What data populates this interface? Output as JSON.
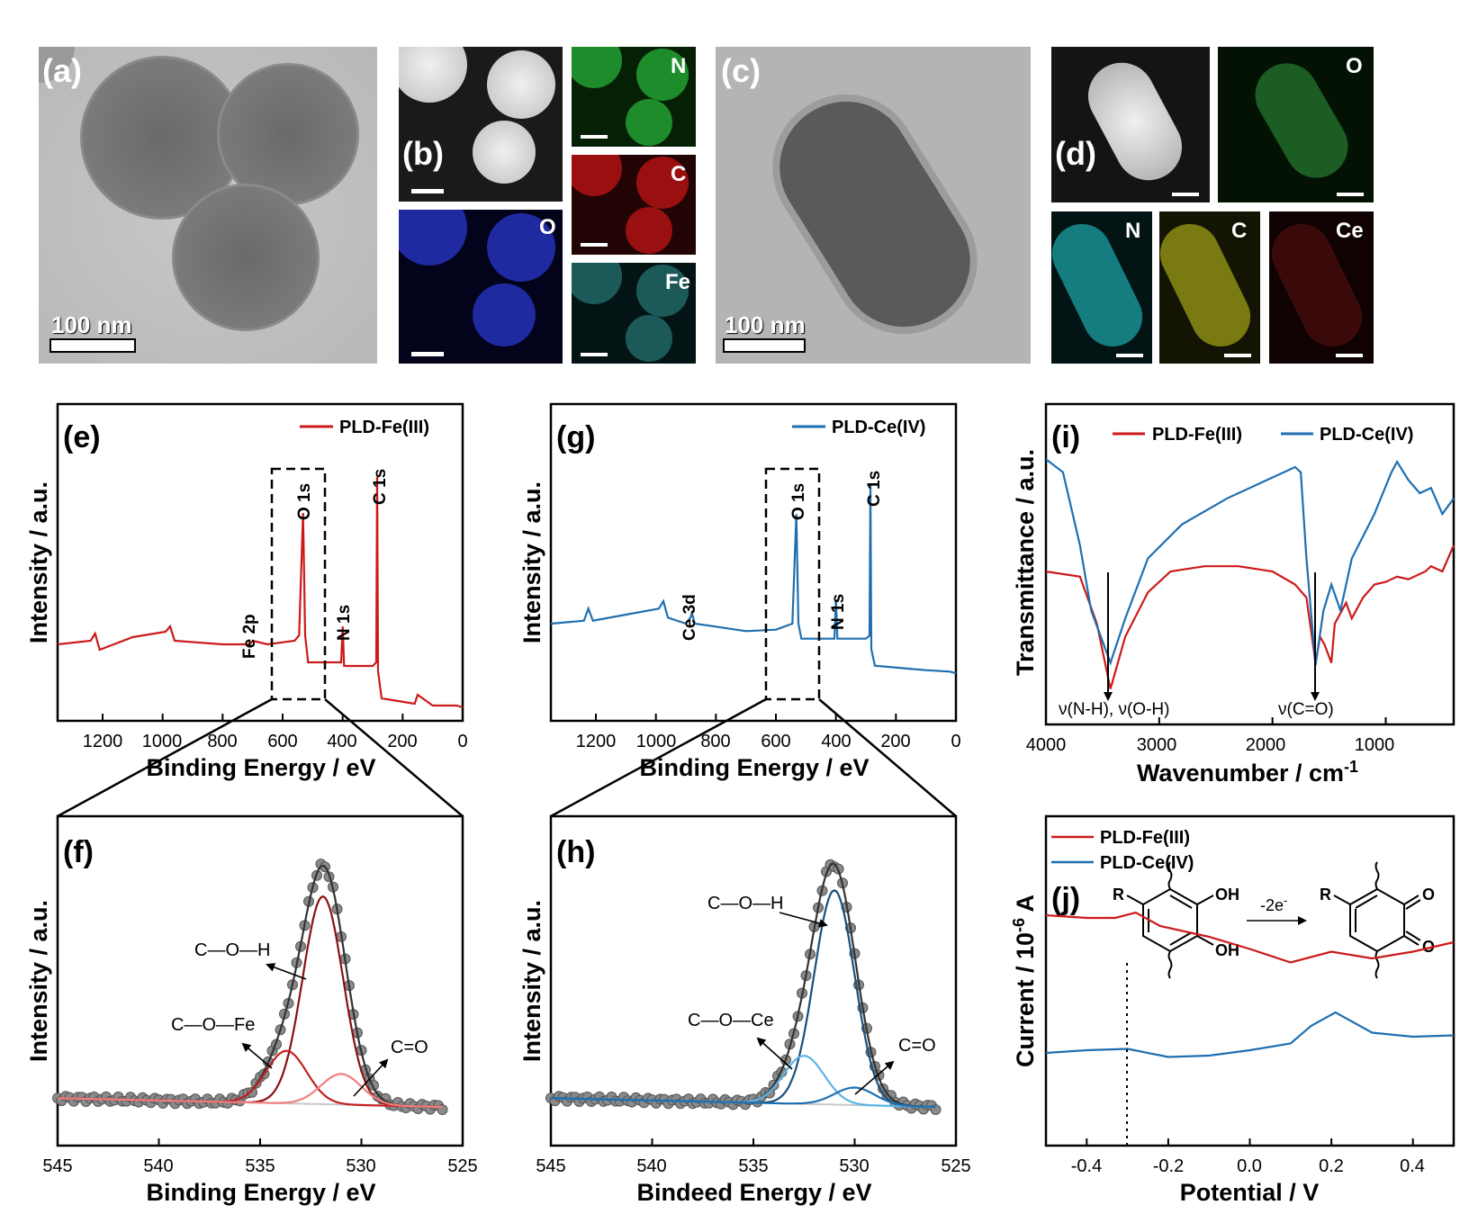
{
  "panels": {
    "a": {
      "label": "(a)",
      "scale_bar": "100 nm"
    },
    "b": {
      "label": "(b)",
      "maps": [
        "N",
        "C",
        "O",
        "Fe"
      ]
    },
    "c": {
      "label": "(c)",
      "scale_bar": "100 nm"
    },
    "d": {
      "label": "(d)",
      "maps": [
        "O",
        "N",
        "C",
        "Ce"
      ]
    },
    "e": {
      "label": "(e)",
      "legend": "PLD-Fe(III)",
      "color": "#cc1a1a",
      "peaks": [
        "Fe 2p",
        "O 1s",
        "N 1s",
        "C 1s"
      ],
      "xlabel": "Binding Energy / eV",
      "ylabel": "Intensity / a.u.",
      "xticks": [
        "1200",
        "1000",
        "800",
        "600",
        "400",
        "200",
        "0"
      ]
    },
    "f": {
      "label": "(f)",
      "components": [
        "C—O—H",
        "C—O—Fe",
        "C=O"
      ],
      "xlabel": "Binding Energy / eV",
      "ylabel": "Intensity / a.u.",
      "xticks": [
        "545",
        "540",
        "535",
        "530",
        "525"
      ]
    },
    "g": {
      "label": "(g)",
      "legend": "PLD-Ce(IV)",
      "color": "#1f6fb0",
      "peaks": [
        "Ce 3d",
        "O 1s",
        "N 1s",
        "C 1s"
      ],
      "xlabel": "Binding Energy / eV",
      "ylabel": "Intensity / a.u.",
      "xticks": [
        "1200",
        "1000",
        "800",
        "600",
        "400",
        "200",
        "0"
      ]
    },
    "h": {
      "label": "(h)",
      "components": [
        "C—O—H",
        "C—O—Ce",
        "C=O"
      ],
      "xlabel": "Bindeed Energy / eV",
      "ylabel": "Intensity / a.u.",
      "xticks": [
        "545",
        "540",
        "535",
        "530",
        "525"
      ]
    },
    "i": {
      "label": "(i)",
      "legend": [
        "PLD-Fe(III)",
        "PLD-Ce(IV)"
      ],
      "annotations": [
        "ν(N-H), ν(O-H)",
        "ν(C=O)"
      ],
      "xlabel": "Wavenumber / cm",
      "xlabel_sup": "-1",
      "ylabel": "Transmittance / a.u.",
      "xticks": [
        "4000",
        "3000",
        "2000",
        "1000"
      ]
    },
    "j": {
      "label": "(j)",
      "legend": [
        "PLD-Fe(III)",
        "PLD-Ce(IV)"
      ],
      "scheme": {
        "r1": "R",
        "r2": "R",
        "oh1": "OH",
        "oh2": "OH",
        "o1": "O",
        "o2": "O",
        "arrow": "-2e",
        "arrow_sup": "-"
      },
      "xlabel": "Potential / V",
      "ylabel": "Current / 10",
      "ylabel_sup": "-6",
      "ylabel_unit": " A",
      "xticks": [
        "-0.4",
        "-0.2",
        "0.0",
        "0.2",
        "0.4"
      ]
    }
  },
  "chart_data": [
    {
      "type": "line",
      "panel": "e",
      "title": "",
      "xlabel": "Binding Energy / eV",
      "ylabel": "Intensity / a.u.",
      "xlim": [
        1350,
        0
      ],
      "series": [
        {
          "name": "PLD-Fe(III)",
          "x": [
            1350,
            1240,
            1225,
            1210,
            1100,
            990,
            975,
            960,
            800,
            710,
            700,
            650,
            560,
            545,
            532,
            525,
            515,
            405,
            400,
            395,
            300,
            288,
            285,
            282,
            270,
            160,
            150,
            100,
            60,
            20,
            0
          ],
          "y": [
            0.0,
            0.02,
            0.06,
            -0.03,
            0.04,
            0.07,
            0.1,
            0.02,
            0.0,
            0.0,
            0.02,
            0.0,
            0.02,
            0.05,
            0.73,
            0.05,
            -0.1,
            -0.1,
            0.1,
            -0.12,
            -0.12,
            -0.1,
            0.93,
            -0.15,
            -0.3,
            -0.33,
            -0.28,
            -0.34,
            -0.34,
            -0.34,
            -0.35
          ]
        }
      ]
    },
    {
      "type": "line",
      "panel": "f",
      "title": "",
      "xlabel": "Binding Energy / eV",
      "ylabel": "Intensity / a.u.",
      "xlim": [
        545,
        525
      ],
      "series": [
        {
          "name": "",
          "x": [
            545,
            540,
            536,
            534,
            532.5,
            531.8,
            531,
            530,
            529,
            528,
            526
          ],
          "y": [
            0.02,
            0.03,
            0.07,
            0.3,
            0.85,
            1.0,
            0.85,
            0.35,
            0.12,
            0.03,
            0.0
          ]
        },
        {
          "name": "C—O—H",
          "center": 531.9,
          "height": 0.95
        },
        {
          "name": "C—O—Fe",
          "center": 533.7,
          "height": 0.24
        },
        {
          "name": "C=O",
          "center": 531.0,
          "height": 0.14
        }
      ]
    },
    {
      "type": "line",
      "panel": "g",
      "title": "",
      "xlabel": "Binding Energy / eV",
      "ylabel": "Intensity / a.u.",
      "xlim": [
        1350,
        0
      ],
      "series": [
        {
          "name": "PLD-Ce(IV)",
          "x": [
            1350,
            1240,
            1225,
            1210,
            1100,
            990,
            975,
            960,
            900,
            885,
            880,
            870,
            800,
            700,
            600,
            545,
            532,
            525,
            515,
            405,
            400,
            395,
            300,
            288,
            285,
            282,
            270,
            160,
            100,
            20,
            0
          ],
          "y": [
            0.0,
            0.02,
            0.1,
            0.02,
            0.06,
            0.1,
            0.15,
            0.04,
            0.0,
            0.04,
            0.07,
            0.0,
            -0.02,
            -0.05,
            -0.04,
            0.0,
            0.73,
            0.0,
            -0.1,
            -0.1,
            0.16,
            -0.1,
            -0.1,
            -0.08,
            0.93,
            -0.17,
            -0.28,
            -0.3,
            -0.31,
            -0.32,
            -0.33
          ]
        }
      ]
    },
    {
      "type": "line",
      "panel": "h",
      "title": "",
      "xlabel": "Bindeed Energy / eV",
      "ylabel": "Intensity / a.u.",
      "xlim": [
        545,
        525
      ],
      "series": [
        {
          "name": "",
          "x": [
            545,
            540,
            535.5,
            533.5,
            532,
            531,
            530.2,
            529.5,
            528.5,
            527.5,
            525
          ],
          "y": [
            0.03,
            0.05,
            0.1,
            0.3,
            0.8,
            1.0,
            0.8,
            0.4,
            0.12,
            0.03,
            0.0
          ]
        },
        {
          "name": "C—O—H",
          "center": 531.0,
          "height": 0.98
        },
        {
          "name": "C—O—Ce",
          "center": 532.5,
          "height": 0.22
        },
        {
          "name": "C=O",
          "center": 530.0,
          "height": 0.08
        }
      ]
    },
    {
      "type": "line",
      "panel": "i",
      "title": "",
      "xlabel": "Wavenumber / cm-1",
      "ylabel": "Transmittance / a.u.",
      "xlim": [
        4000,
        400
      ],
      "series": [
        {
          "name": "PLD-Fe(III)",
          "x": [
            4000,
            3700,
            3550,
            3430,
            3300,
            3100,
            2900,
            2600,
            2300,
            2000,
            1800,
            1700,
            1620,
            1580,
            1540,
            1480,
            1450,
            1350,
            1300,
            1200,
            1100,
            1000,
            900,
            800,
            650,
            600,
            500,
            400
          ],
          "y": [
            0.5,
            0.48,
            0.3,
            0.05,
            0.25,
            0.42,
            0.5,
            0.52,
            0.52,
            0.5,
            0.45,
            0.4,
            0.15,
            0.25,
            0.22,
            0.15,
            0.3,
            0.38,
            0.32,
            0.4,
            0.45,
            0.46,
            0.48,
            0.47,
            0.5,
            0.52,
            0.5,
            0.6
          ]
        },
        {
          "name": "PLD-Ce(IV)",
          "x": [
            4000,
            3850,
            3700,
            3600,
            3430,
            3300,
            3100,
            2800,
            2400,
            2100,
            1800,
            1750,
            1700,
            1620,
            1550,
            1480,
            1400,
            1300,
            1100,
            950,
            900,
            800,
            700,
            600,
            500,
            400
          ],
          "y": [
            0.93,
            0.88,
            0.6,
            0.35,
            0.15,
            0.32,
            0.55,
            0.68,
            0.78,
            0.84,
            0.9,
            0.88,
            0.55,
            0.14,
            0.35,
            0.45,
            0.35,
            0.55,
            0.72,
            0.88,
            0.92,
            0.85,
            0.8,
            0.82,
            0.72,
            0.78
          ]
        }
      ]
    },
    {
      "type": "line",
      "panel": "j",
      "title": "",
      "xlabel": "Potential / V",
      "ylabel": "Current / 10-6 A",
      "xlim": [
        -0.5,
        0.5
      ],
      "xticks": [
        -0.4,
        -0.2,
        0.0,
        0.2,
        0.4
      ],
      "series": [
        {
          "name": "PLD-Fe(III)",
          "x": [
            -0.5,
            -0.4,
            -0.33,
            -0.28,
            -0.22,
            -0.1,
            0.0,
            0.1,
            0.2,
            0.3,
            0.4,
            0.5
          ],
          "y": [
            0.62,
            0.6,
            0.6,
            0.64,
            0.54,
            0.46,
            0.37,
            0.27,
            0.35,
            0.3,
            0.35,
            0.42
          ]
        },
        {
          "name": "PLD-Ce(IV)",
          "x": [
            -0.5,
            -0.4,
            -0.3,
            -0.2,
            -0.1,
            0.0,
            0.1,
            0.15,
            0.21,
            0.3,
            0.4,
            0.5
          ],
          "y": [
            -0.4,
            -0.38,
            -0.37,
            -0.43,
            -0.42,
            -0.38,
            -0.33,
            -0.2,
            -0.1,
            -0.25,
            -0.28,
            -0.27
          ]
        }
      ]
    }
  ]
}
